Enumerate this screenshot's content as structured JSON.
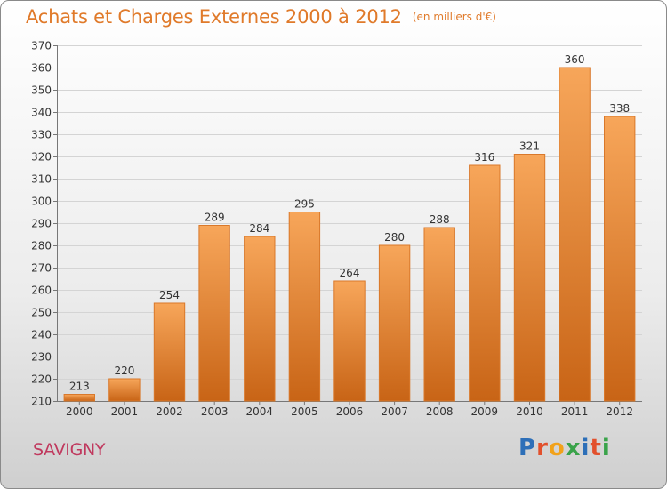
{
  "title": {
    "main": "Achats et Charges Externes 2000 à 2012",
    "unit": "(en milliers d'€)"
  },
  "town": "SAVIGNY",
  "logo": {
    "text": "Proxiti",
    "colors": [
      "#2d6fb8",
      "#e2502c",
      "#f2a21a",
      "#3aa34a",
      "#2d6fb8",
      "#e2502c",
      "#3aa34a"
    ]
  },
  "colors": {
    "bar_top": "#f7a65a",
    "bar_bottom": "#c86416",
    "bar_edge": "#d9782a",
    "title": "#e07a2a",
    "town": "#c0395e"
  },
  "chart_data": {
    "type": "bar",
    "categories": [
      "2000",
      "2001",
      "2002",
      "2003",
      "2004",
      "2005",
      "2006",
      "2007",
      "2008",
      "2009",
      "2010",
      "2011",
      "2012"
    ],
    "values": [
      213,
      220,
      254,
      289,
      284,
      295,
      264,
      280,
      288,
      316,
      321,
      360,
      338
    ],
    "ylim": [
      210,
      370
    ],
    "yticks": [
      210,
      220,
      230,
      240,
      250,
      260,
      270,
      280,
      290,
      300,
      310,
      320,
      330,
      340,
      350,
      360,
      370
    ],
    "grid": true,
    "data_labels": true
  }
}
